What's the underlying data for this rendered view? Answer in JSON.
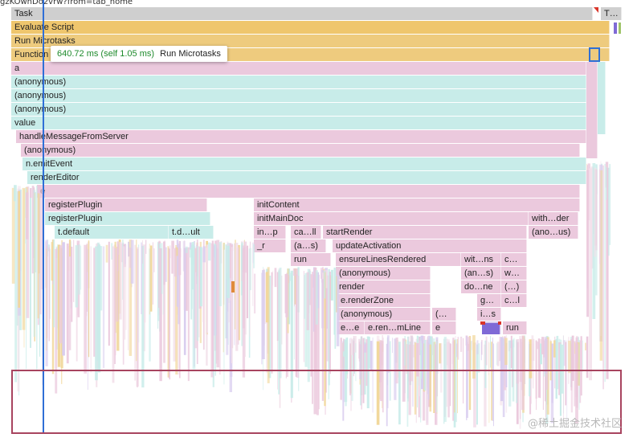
{
  "url_fragment": "gzKOwnDo2vrw?from=tab_home",
  "tooltip": {
    "time": "640.72 ms (self 1.05 ms)",
    "name": "Run Microtasks"
  },
  "flame": {
    "task": "Task",
    "task_short": "T…",
    "evaluate_script": "Evaluate Script",
    "run_microtasks": "Run Microtasks",
    "function_call": "Function",
    "a": "a",
    "anonymous": "(anonymous)",
    "value": "value",
    "handle_message": "handleMessageFromServer",
    "emit_event": "n.emitEvent",
    "render_editor": "renderEditor",
    "e": "e",
    "register_plugin": "registerPlugin",
    "init_content": "initContent",
    "init_main_doc": "initMainDoc",
    "with_der": "with…der",
    "t_default": "t.default",
    "t_dult": "t.d…ult",
    "in_p": "in…p",
    "ca_ll": "ca…ll",
    "start_render": "startRender",
    "ano_us": "(ano…us)",
    "r": "_r",
    "a_s": "(a…s)",
    "update_activation": "updateActivation",
    "run": "run",
    "ensure_lines": "ensureLinesRendered",
    "wit_ns": "wit…ns",
    "c_dots": "c…",
    "an_s": "(an…s)",
    "w_dots": "w…",
    "render": "render",
    "do_ne": "do…ne",
    "paren_dots": "(…)",
    "render_zone": "e.renderZone",
    "g_dots": "g…",
    "c_l": "c…l",
    "paren_open": "(…",
    "i_s": "i…s",
    "e_e": "e…e",
    "e_ren_mline": "e.ren…mLine",
    "e_short": "e",
    "run2": "run"
  },
  "watermark": "@稀土掘金技术社区"
}
